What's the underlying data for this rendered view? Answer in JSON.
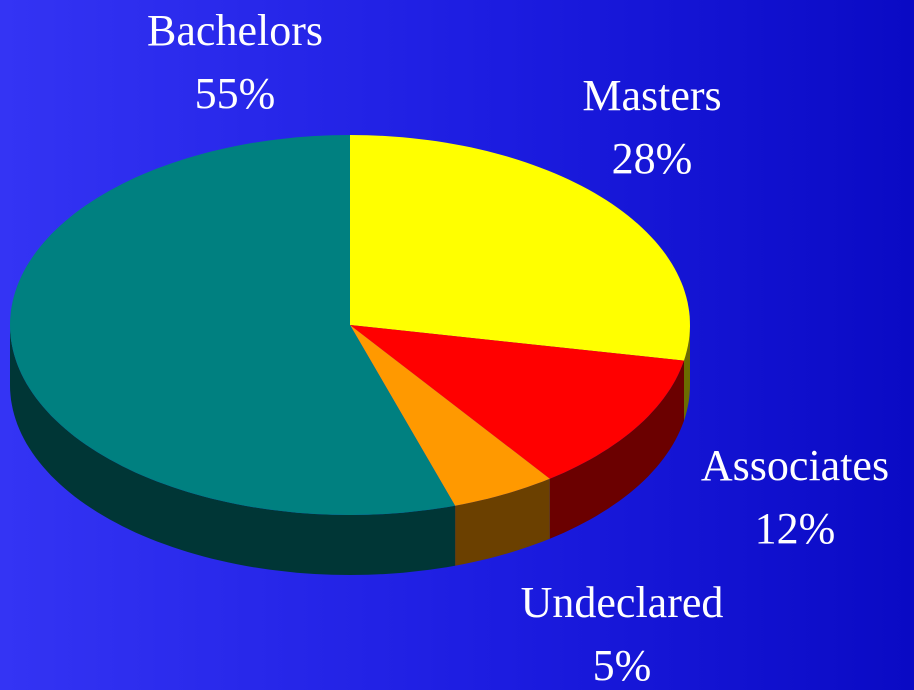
{
  "chart_data": {
    "type": "pie",
    "categories": [
      "Masters",
      "Associates",
      "Undeclared",
      "Bachelors"
    ],
    "values": [
      28,
      12,
      5,
      55
    ],
    "value_labels": [
      "28%",
      "12%",
      "5%",
      "55%"
    ],
    "colors": [
      "#ffff00",
      "#ff0000",
      "#ff9900",
      "#008080"
    ]
  }
}
